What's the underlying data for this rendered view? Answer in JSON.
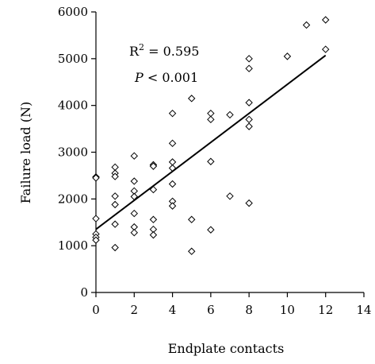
{
  "chart_data": {
    "type": "scatter",
    "title": "",
    "xlabel": "Endplate contacts",
    "ylabel": "Failure load (N)",
    "xlim": [
      0,
      14
    ],
    "ylim": [
      0,
      6000
    ],
    "xticks": [
      "0",
      "2",
      "4",
      "6",
      "8",
      "10",
      "12",
      "14"
    ],
    "yticks": [
      "0",
      "1000",
      "2000",
      "3000",
      "4000",
      "5000",
      "6000"
    ],
    "grid": false,
    "legend": "none",
    "annotations": {
      "r2_prefix": "R",
      "r2_sup": "2",
      "r2_value": " = 0.595",
      "p_symbol": "P",
      "p_value": " < 0.001"
    },
    "trendline": {
      "x": [
        0,
        12
      ],
      "y": [
        1350,
        5070
      ]
    },
    "points": [
      [
        0,
        2470
      ],
      [
        0,
        2450
      ],
      [
        0,
        1580
      ],
      [
        0,
        1250
      ],
      [
        0,
        1180
      ],
      [
        0,
        1120
      ],
      [
        1,
        2680
      ],
      [
        1,
        2550
      ],
      [
        1,
        2480
      ],
      [
        1,
        2060
      ],
      [
        1,
        1880
      ],
      [
        1,
        1460
      ],
      [
        1,
        960
      ],
      [
        2,
        2920
      ],
      [
        2,
        2380
      ],
      [
        2,
        2170
      ],
      [
        2,
        2050
      ],
      [
        2,
        1690
      ],
      [
        2,
        1400
      ],
      [
        2,
        1280
      ],
      [
        3,
        2730
      ],
      [
        3,
        2700
      ],
      [
        3,
        2200
      ],
      [
        3,
        1560
      ],
      [
        3,
        1350
      ],
      [
        3,
        1230
      ],
      [
        4,
        3830
      ],
      [
        4,
        3190
      ],
      [
        4,
        2790
      ],
      [
        4,
        2660
      ],
      [
        4,
        2320
      ],
      [
        4,
        1950
      ],
      [
        4,
        1850
      ],
      [
        5,
        4150
      ],
      [
        5,
        1560
      ],
      [
        5,
        880
      ],
      [
        6,
        3830
      ],
      [
        6,
        3700
      ],
      [
        6,
        2800
      ],
      [
        6,
        1340
      ],
      [
        7,
        3800
      ],
      [
        7,
        2060
      ],
      [
        8,
        5000
      ],
      [
        8,
        4790
      ],
      [
        8,
        4060
      ],
      [
        8,
        3700
      ],
      [
        8,
        3550
      ],
      [
        8,
        1910
      ],
      [
        10,
        5050
      ],
      [
        11,
        5720
      ],
      [
        12,
        5830
      ],
      [
        12,
        5200
      ]
    ]
  }
}
